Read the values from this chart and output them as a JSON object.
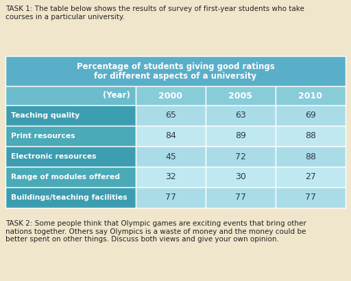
{
  "task1_text": "TASK 1: The table below shows the results of survey of first-year students who take\ncourses in a particular university.",
  "task2_text": "TASK 2: Some people think that Olympic games are exciting events that bring other\nnations together. Others say Olympics is a waste of money and the money could be\nbetter spent on other things. Discuss both views and give your own opinion.",
  "table_header_line1": "Percentage of students giving good ratings",
  "table_header_line2": "for different aspects of a university",
  "col_headers": [
    "(Year)",
    "2000",
    "2005",
    "2010"
  ],
  "rows": [
    [
      "Teaching quality",
      "65",
      "63",
      "69"
    ],
    [
      "Print resources",
      "84",
      "89",
      "88"
    ],
    [
      "Electronic resources",
      "45",
      "72",
      "88"
    ],
    [
      "Range of modules offered",
      "32",
      "30",
      "27"
    ],
    [
      "Buildings/teaching facilities",
      "77",
      "77",
      "77"
    ]
  ],
  "main_header_bg": "#5aafc8",
  "subheader_label_bg": "#6bbccc",
  "subheader_data_bg": "#88ccd8",
  "row_label_odd_bg": "#3d9db0",
  "row_label_even_bg": "#4aaab8",
  "row_data_odd_bg": "#aadce8",
  "row_data_even_bg": "#c0e8f0",
  "header_text_color": "#ffffff",
  "data_text_color": "#2a3a4a",
  "label_text_color": "#ffffff",
  "page_bg": "#f0e6cc",
  "task_text_color": "#222222",
  "white_border": "#ffffff"
}
